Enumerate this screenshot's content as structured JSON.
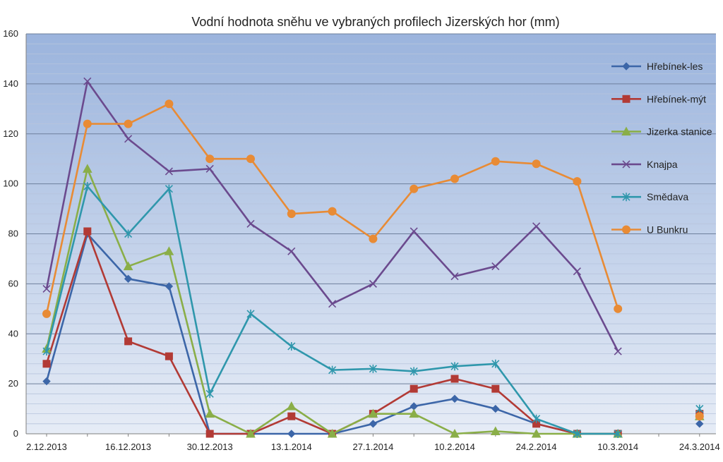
{
  "chart_data": {
    "type": "line",
    "title": "Vodní hodnota sněhu ve vybraných profilech Jizerských hor (mm)",
    "xlabel": "",
    "ylabel": "",
    "ylim": [
      0,
      160
    ],
    "y_ticks": [
      "0",
      "20",
      "40",
      "60",
      "80",
      "100",
      "120",
      "140",
      "160"
    ],
    "x_tick_labels": [
      "2.12.2013",
      "16.12.2013",
      "30.12.2013",
      "13.1.2014",
      "27.1.2014",
      "10.2.2014",
      "24.2.2014",
      "10.3.2014",
      "24.3.2014"
    ],
    "x_dates": [
      "2.12.2013",
      "9.12.2013",
      "16.12.2013",
      "23.12.2013",
      "30.12.2013",
      "6.1.2014",
      "13.1.2014",
      "20.1.2014",
      "27.1.2014",
      "3.2.2014",
      "10.2.2014",
      "17.2.2014",
      "24.2.2014",
      "3.3.2014",
      "10.3.2014",
      "17.3.2014",
      "24.3.2014"
    ],
    "grid": true,
    "minor_grid": true,
    "legend_position": "right",
    "series": [
      {
        "name": "Hřebínek-les",
        "color": "#3C66A8",
        "marker": "diamond",
        "values": [
          21,
          80,
          62,
          59,
          0,
          0,
          0,
          0,
          4,
          11,
          14,
          10,
          4,
          0,
          0,
          null,
          4
        ]
      },
      {
        "name": "Hřebínek-mýt",
        "color": "#B23A35",
        "marker": "square",
        "values": [
          28,
          81,
          37,
          31,
          0,
          0,
          7,
          0,
          8,
          18,
          22,
          18,
          4,
          0,
          0,
          null,
          8
        ]
      },
      {
        "name": "Jizerka stanice",
        "color": "#8AAE48",
        "marker": "triangle",
        "values": [
          34,
          106,
          67,
          73,
          8,
          0,
          11,
          0,
          8,
          8,
          0,
          1,
          0,
          0,
          0,
          null,
          7
        ]
      },
      {
        "name": "Knajpa",
        "color": "#6B4A8E",
        "marker": "x",
        "values": [
          58,
          141,
          118,
          105,
          106,
          84,
          73,
          52,
          60,
          81,
          63,
          67,
          83,
          65,
          33,
          null,
          null
        ]
      },
      {
        "name": "Smědava",
        "color": "#2F97AC",
        "marker": "star",
        "values": [
          33,
          99,
          80,
          98,
          16,
          48,
          35,
          25.5,
          26,
          25,
          27,
          28,
          6,
          0,
          0,
          null,
          10
        ]
      },
      {
        "name": "U Bunkru",
        "color": "#E88B35",
        "marker": "circle",
        "values": [
          48,
          124,
          124,
          132,
          110,
          110,
          88,
          89,
          78,
          98,
          102,
          109,
          108,
          101,
          50,
          null,
          7
        ]
      }
    ]
  }
}
